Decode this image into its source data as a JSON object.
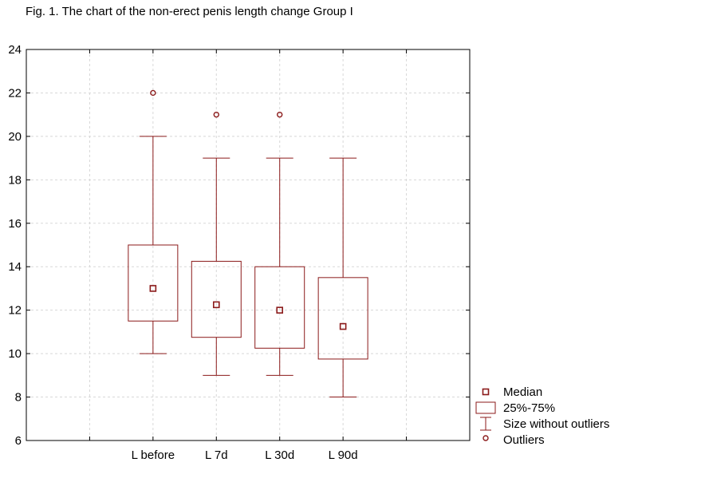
{
  "chart_data": {
    "type": "boxplot",
    "title": "Fig. 1. The chart of the non-erect penis length change Group I",
    "xlabel": "",
    "ylabel": "",
    "ylim": [
      6,
      24
    ],
    "yticks": [
      6,
      8,
      10,
      12,
      14,
      16,
      18,
      20,
      22,
      24
    ],
    "xlim": [
      0,
      7
    ],
    "categories": [
      "L before",
      "L 7d",
      "L 30d",
      "L 90d"
    ],
    "boxes": [
      {
        "category": "L before",
        "median": 13.0,
        "q1": 11.5,
        "q3": 15.0,
        "whisker_low": 10,
        "whisker_high": 20,
        "outliers": [
          22
        ]
      },
      {
        "category": "L 7d",
        "median": 12.25,
        "q1": 10.75,
        "q3": 14.25,
        "whisker_low": 9,
        "whisker_high": 19,
        "outliers": [
          21
        ]
      },
      {
        "category": "L 30d",
        "median": 12.0,
        "q1": 10.25,
        "q3": 14.0,
        "whisker_low": 9,
        "whisker_high": 19,
        "outliers": [
          21
        ]
      },
      {
        "category": "L 90d",
        "median": 11.25,
        "q1": 9.75,
        "q3": 13.5,
        "whisker_low": 8,
        "whisker_high": 19,
        "outliers": []
      }
    ],
    "grid": true,
    "legend_position": "bottom-right",
    "legend": [
      "Median",
      "25%-75%",
      "Size without outliers",
      "Outliers"
    ],
    "colors": {
      "series": "#8b1a1a",
      "grid": "#d8d8d8",
      "axis": "#000000"
    }
  }
}
